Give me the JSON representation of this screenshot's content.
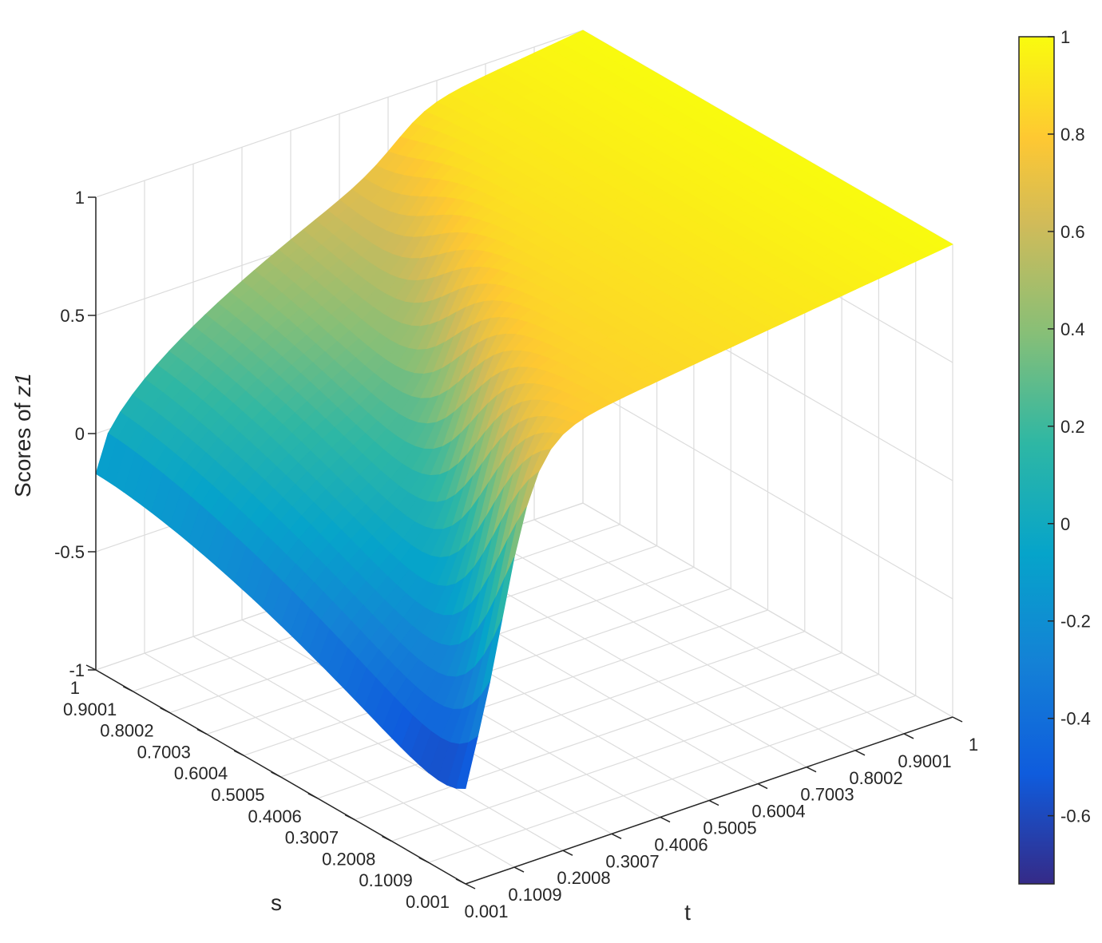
{
  "chart_data": {
    "type": "surface",
    "title": "",
    "xlabel": "t",
    "ylabel": "s",
    "zlabel": "Scores of ",
    "zlabel_italic": "z1",
    "grid": true,
    "x_ticks": [
      "0.001",
      "0.1009",
      "0.2008",
      "0.3007",
      "0.4006",
      "0.5005",
      "0.6004",
      "0.7003",
      "0.8002",
      "0.9001",
      "1"
    ],
    "y_ticks": [
      "0.001",
      "0.1009",
      "0.2008",
      "0.3007",
      "0.4006",
      "0.5005",
      "0.6004",
      "0.7003",
      "0.8002",
      "0.9001",
      "1"
    ],
    "z_ticks": [
      "-1",
      "-0.5",
      "0",
      "0.5",
      "1"
    ],
    "zlim": [
      -1,
      1
    ],
    "colormap": "parula",
    "colorbar": {
      "range": [
        -0.74,
        1
      ],
      "ticks": [
        "1",
        "0.8",
        "0.6",
        "0.4",
        "0.2",
        "0",
        "-0.2",
        "-0.4",
        "-0.6"
      ],
      "placement": "right"
    },
    "surface_description_points": {
      "corner_t0_s0": -0.74,
      "corner_t0_s1": -0.17,
      "corner_t1_s0": 0.93,
      "corner_t1_s1": 1.0,
      "peak_t0_mid": 1.0
    }
  }
}
